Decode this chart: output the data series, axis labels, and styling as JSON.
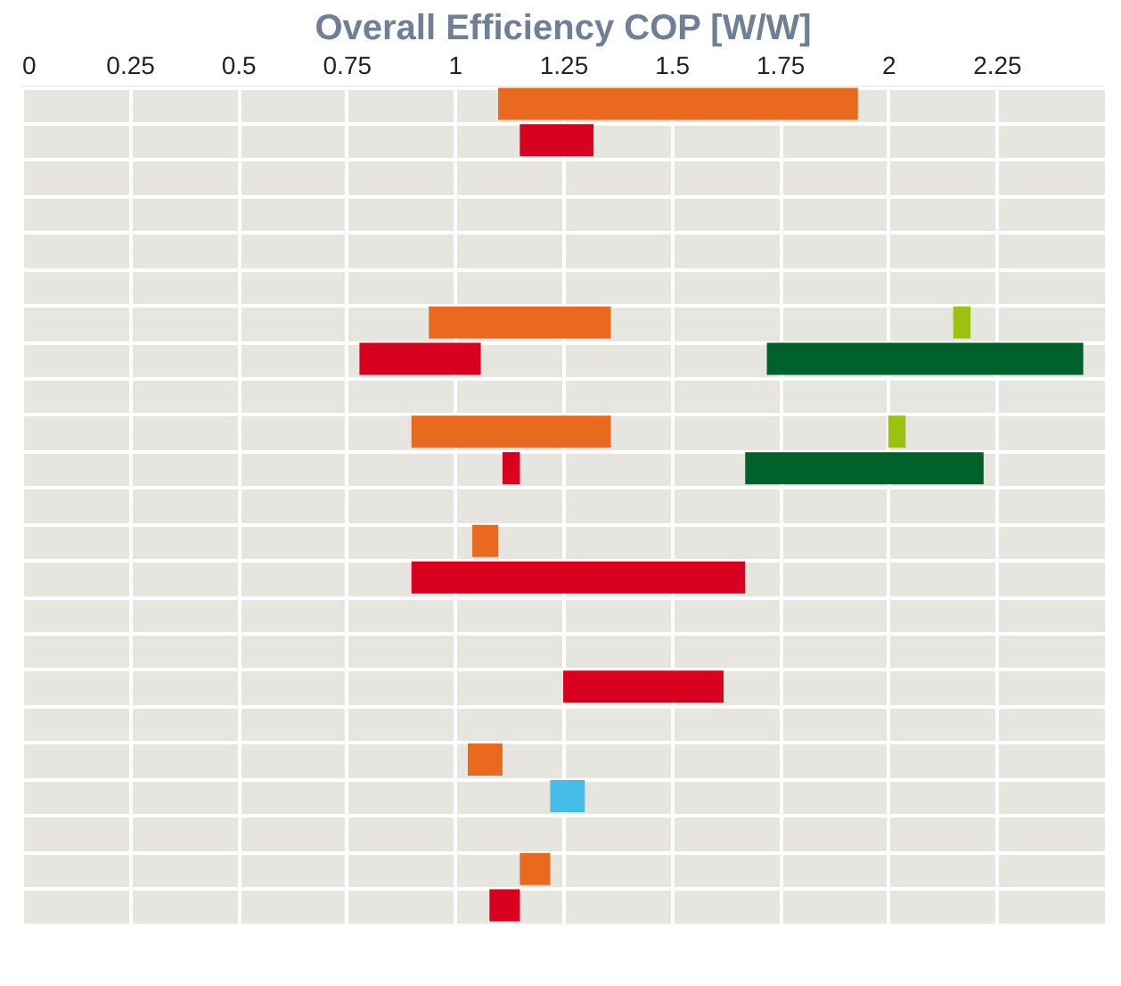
{
  "chart_data": {
    "type": "bar",
    "orientation": "horizontal",
    "title": "Overall Efficiency COP [W/W]",
    "categories": [
      null,
      null,
      null,
      null,
      null,
      null,
      null,
      null,
      null,
      null,
      null,
      null,
      null,
      null,
      null,
      null,
      null,
      null,
      null,
      null,
      null,
      null,
      null
    ],
    "series": [
      {
        "color": "#e96a1f",
        "base": [
          1.1,
          null,
          null,
          null,
          null,
          null,
          0.94,
          null,
          null,
          0.9,
          null,
          null,
          1.04,
          null,
          null,
          null,
          null,
          null,
          1.03,
          null,
          null,
          1.15,
          null
        ],
        "values": [
          0.83,
          null,
          null,
          null,
          null,
          null,
          0.42,
          null,
          null,
          0.46,
          null,
          null,
          0.06,
          null,
          null,
          null,
          null,
          null,
          0.08,
          null,
          null,
          0.07,
          null
        ]
      },
      {
        "color": "#d9001f",
        "base": [
          null,
          1.15,
          null,
          null,
          null,
          null,
          null,
          0.78,
          null,
          null,
          1.11,
          null,
          null,
          0.9,
          null,
          null,
          1.25,
          null,
          null,
          null,
          null,
          null,
          1.08
        ],
        "values": [
          null,
          0.17,
          null,
          null,
          null,
          null,
          null,
          0.28,
          null,
          null,
          0.04,
          null,
          null,
          0.77,
          null,
          null,
          0.37,
          null,
          null,
          null,
          null,
          null,
          0.07
        ]
      },
      {
        "color": "#9cc10e",
        "base": [
          null,
          null,
          null,
          null,
          null,
          null,
          2.15,
          null,
          null,
          2.0,
          null,
          null,
          null,
          null,
          null,
          null,
          null,
          null,
          null,
          null,
          null,
          null,
          null
        ],
        "values": [
          null,
          null,
          null,
          null,
          null,
          null,
          0.04,
          null,
          null,
          0.04,
          null,
          null,
          null,
          null,
          null,
          null,
          null,
          null,
          null,
          null,
          null,
          null,
          null
        ]
      },
      {
        "color": "#00612a",
        "base": [
          null,
          null,
          null,
          null,
          null,
          null,
          null,
          1.72,
          null,
          null,
          1.67,
          null,
          null,
          null,
          null,
          null,
          null,
          null,
          null,
          null,
          null,
          null,
          null
        ],
        "values": [
          null,
          null,
          null,
          null,
          null,
          null,
          null,
          0.73,
          null,
          null,
          0.55,
          null,
          null,
          null,
          null,
          null,
          null,
          null,
          null,
          null,
          null,
          null,
          null
        ]
      },
      {
        "color": "#45bde8",
        "base": [
          null,
          null,
          null,
          null,
          null,
          null,
          null,
          null,
          null,
          null,
          null,
          null,
          null,
          null,
          null,
          null,
          null,
          null,
          null,
          1.22,
          null,
          null,
          null
        ],
        "values": [
          null,
          null,
          null,
          null,
          null,
          null,
          null,
          null,
          null,
          null,
          null,
          null,
          null,
          null,
          null,
          null,
          null,
          null,
          null,
          0.08,
          null,
          null,
          null
        ]
      }
    ],
    "xlim": [
      0,
      2.5
    ],
    "xticks": [
      0,
      0.25,
      0.5,
      0.75,
      1,
      1.25,
      1.5,
      1.75,
      2,
      2.25
    ],
    "grid": true
  }
}
